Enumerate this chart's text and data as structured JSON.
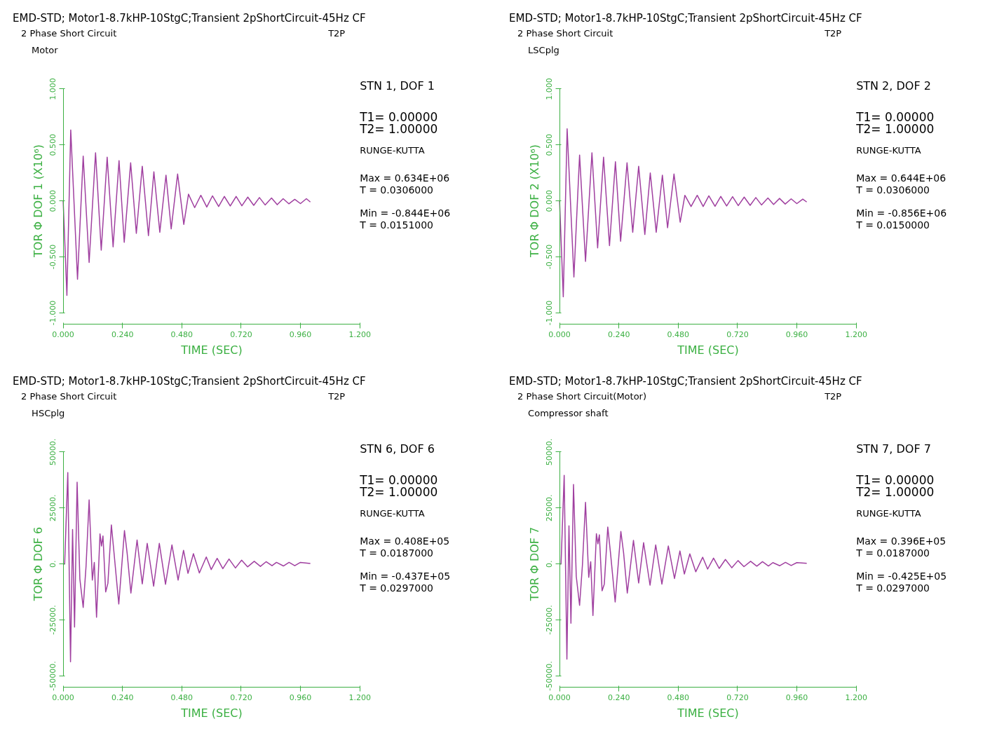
{
  "chart_data": [
    {
      "type": "line",
      "title": "EMD-STD; Motor1-8.7kHP-10StgC;Transient 2pShortCircuit-45Hz CF",
      "subtitle": "2 Phase Short Circuit",
      "xlabel": "TIME (SEC)",
      "ylabel": "TOR Φ DOF 1 (X10⁶)",
      "annotations": [
        "T2P",
        "Motor",
        "STN 1, DOF 1",
        "T1= 0.00000",
        "T2= 1.00000",
        "RUNGE-KUTTA",
        "Max = 0.634E+06",
        "T = 0.0306000",
        "Min = -0.844E+06",
        "T = 0.0151000"
      ],
      "xlim": [
        0,
        1.2
      ],
      "ylim": [
        -1,
        1
      ],
      "xticks": [
        {
          "value": 0,
          "label": "0.000"
        },
        {
          "value": 0.24,
          "label": "0.240"
        },
        {
          "value": 0.48,
          "label": "0.480"
        },
        {
          "value": 0.72,
          "label": "0.720"
        },
        {
          "value": 0.96,
          "label": "0.960"
        },
        {
          "value": 1.2,
          "label": "1.200"
        }
      ],
      "yticks": [
        {
          "value": -1,
          "label": "-1.000"
        },
        {
          "value": -0.5,
          "label": "-0.500"
        },
        {
          "value": 0,
          "label": "0.000"
        },
        {
          "value": 0.5,
          "label": "0.500"
        },
        {
          "value": 1,
          "label": "1.000"
        }
      ],
      "grid": false,
      "series": [
        {
          "color": "#a040a0",
          "x": [
            0,
            0.0151,
            0.0306,
            0.058,
            0.081,
            0.105,
            0.131,
            0.154,
            0.178,
            0.202,
            0.226,
            0.247,
            0.273,
            0.296,
            0.32,
            0.345,
            0.367,
            0.391,
            0.416,
            0.437,
            0.463,
            0.488,
            0.507,
            0.532,
            0.557,
            0.581,
            0.604,
            0.629,
            0.652,
            0.676,
            0.7,
            0.723,
            0.747,
            0.771,
            0.794,
            0.817,
            0.843,
            0.866,
            0.89,
            0.913,
            0.937,
            0.96,
            0.984,
            1.0
          ],
          "values": [
            0,
            -0.844,
            0.634,
            -0.7,
            0.4,
            -0.55,
            0.43,
            -0.44,
            0.39,
            -0.41,
            0.36,
            -0.37,
            0.34,
            -0.29,
            0.31,
            -0.31,
            0.26,
            -0.28,
            0.23,
            -0.25,
            0.24,
            -0.21,
            0.06,
            -0.06,
            0.05,
            -0.055,
            0.045,
            -0.05,
            0.04,
            -0.045,
            0.04,
            -0.044,
            0.034,
            -0.04,
            0.03,
            -0.036,
            0.026,
            -0.034,
            0.02,
            -0.026,
            0.014,
            -0.024,
            0.02,
            -0.01
          ]
        }
      ]
    },
    {
      "type": "line",
      "title": "EMD-STD; Motor1-8.7kHP-10StgC;Transient 2pShortCircuit-45Hz CF",
      "subtitle": "2 Phase Short Circuit",
      "xlabel": "TIME (SEC)",
      "ylabel": "TOR Φ DOF 2 (X10⁶)",
      "annotations": [
        "T2P",
        "LSCplg",
        "STN 2, DOF 2",
        "T1= 0.00000",
        "T2= 1.00000",
        "RUNGE-KUTTA",
        "Max = 0.644E+06",
        "T = 0.0306000",
        "Min = -0.856E+06",
        "T = 0.0150000"
      ],
      "xlim": [
        0,
        1.2
      ],
      "ylim": [
        -1,
        1
      ],
      "xticks": [
        {
          "value": 0,
          "label": "0.000"
        },
        {
          "value": 0.24,
          "label": "0.240"
        },
        {
          "value": 0.48,
          "label": "0.480"
        },
        {
          "value": 0.72,
          "label": "0.720"
        },
        {
          "value": 0.96,
          "label": "0.960"
        },
        {
          "value": 1.2,
          "label": "1.200"
        }
      ],
      "yticks": [
        {
          "value": -1,
          "label": "-1.000"
        },
        {
          "value": -0.5,
          "label": "-0.500"
        },
        {
          "value": 0,
          "label": "0.000"
        },
        {
          "value": 0.5,
          "label": "0.500"
        },
        {
          "value": 1,
          "label": "1.000"
        }
      ],
      "grid": false,
      "series": [
        {
          "color": "#a040a0",
          "x": [
            0,
            0.015,
            0.0306,
            0.058,
            0.081,
            0.105,
            0.131,
            0.154,
            0.178,
            0.202,
            0.226,
            0.247,
            0.273,
            0.296,
            0.32,
            0.345,
            0.367,
            0.391,
            0.416,
            0.437,
            0.463,
            0.488,
            0.507,
            0.532,
            0.557,
            0.581,
            0.604,
            0.629,
            0.652,
            0.676,
            0.7,
            0.723,
            0.747,
            0.771,
            0.794,
            0.817,
            0.843,
            0.866,
            0.89,
            0.913,
            0.937,
            0.96,
            0.984,
            1.0
          ],
          "values": [
            0,
            -0.856,
            0.644,
            -0.68,
            0.41,
            -0.54,
            0.43,
            -0.42,
            0.39,
            -0.4,
            0.35,
            -0.36,
            0.34,
            -0.28,
            0.31,
            -0.3,
            0.25,
            -0.28,
            0.23,
            -0.24,
            0.24,
            -0.19,
            0.05,
            -0.05,
            0.05,
            -0.05,
            0.045,
            -0.048,
            0.04,
            -0.045,
            0.038,
            -0.042,
            0.034,
            -0.04,
            0.03,
            -0.036,
            0.026,
            -0.032,
            0.022,
            -0.028,
            0.018,
            -0.024,
            0.016,
            -0.01
          ]
        }
      ]
    },
    {
      "type": "line",
      "title": "EMD-STD; Motor1-8.7kHP-10StgC;Transient 2pShortCircuit-45Hz CF",
      "subtitle": "2 Phase Short Circuit",
      "xlabel": "TIME (SEC)",
      "ylabel": "TOR Φ DOF 6",
      "annotations": [
        "T2P",
        "HSCplg",
        "STN 6, DOF 6",
        "T1= 0.00000",
        "T2= 1.00000",
        "RUNGE-KUTTA",
        "Max = 0.408E+05",
        "T = 0.0187000",
        "Min = -0.437E+05",
        "T = 0.0297000"
      ],
      "xlim": [
        0,
        1.2
      ],
      "ylim": [
        -50000,
        50000
      ],
      "xticks": [
        {
          "value": 0,
          "label": "0.000"
        },
        {
          "value": 0.24,
          "label": "0.240"
        },
        {
          "value": 0.48,
          "label": "0.480"
        },
        {
          "value": 0.72,
          "label": "0.720"
        },
        {
          "value": 0.96,
          "label": "0.960"
        },
        {
          "value": 1.2,
          "label": "1.200"
        }
      ],
      "yticks": [
        {
          "value": -50000,
          "label": "-50000."
        },
        {
          "value": -25000,
          "label": "-25000."
        },
        {
          "value": 0,
          "label": "0."
        },
        {
          "value": 25000,
          "label": "25000."
        },
        {
          "value": 50000,
          "label": "50000."
        }
      ],
      "grid": false,
      "series": [
        {
          "color": "#a040a0",
          "x": [
            0,
            0.006,
            0.0187,
            0.0297,
            0.038,
            0.046,
            0.0564,
            0.0675,
            0.081,
            0.0925,
            0.105,
            0.118,
            0.126,
            0.135,
            0.149,
            0.155,
            0.161,
            0.172,
            0.181,
            0.195,
            0.206,
            0.225,
            0.248,
            0.259,
            0.274,
            0.299,
            0.32,
            0.34,
            0.366,
            0.389,
            0.414,
            0.44,
            0.465,
            0.487,
            0.505,
            0.527,
            0.551,
            0.579,
            0.599,
            0.623,
            0.646,
            0.671,
            0.697,
            0.722,
            0.746,
            0.773,
            0.798,
            0.821,
            0.845,
            0.863,
            0.891,
            0.914,
            0.937,
            0.96,
            1.0
          ],
          "values": [
            0,
            0,
            40800,
            -43700,
            15400,
            -28200,
            36500,
            -6700,
            -19400,
            -1100,
            28600,
            -7200,
            700,
            -23800,
            13400,
            8000,
            12500,
            -12500,
            -8600,
            17400,
            4600,
            -17900,
            14900,
            4600,
            -13000,
            10700,
            -8900,
            9200,
            -9900,
            9200,
            -9100,
            8500,
            -7200,
            6100,
            -4200,
            4600,
            -4000,
            3100,
            -2500,
            2500,
            -2100,
            2200,
            -1800,
            1700,
            -1300,
            1200,
            -1100,
            1000,
            -800,
            700,
            -900,
            700,
            -800,
            700,
            200
          ]
        }
      ]
    },
    {
      "type": "line",
      "title": "EMD-STD; Motor1-8.7kHP-10StgC;Transient 2pShortCircuit-45Hz CF",
      "subtitle": "2 Phase Short Circuit(Motor)",
      "xlabel": "TIME (SEC)",
      "ylabel": "TOR Φ DOF 7",
      "annotations": [
        "T2P",
        "Compressor shaft",
        "STN 7, DOF 7",
        "T1= 0.00000",
        "T2= 1.00000",
        "RUNGE-KUTTA",
        "Max = 0.396E+05",
        "T = 0.0187000",
        "Min = -0.425E+05",
        "T = 0.0297000"
      ],
      "xlim": [
        0,
        1.2
      ],
      "ylim": [
        -50000,
        50000
      ],
      "xticks": [
        {
          "value": 0,
          "label": "0.000"
        },
        {
          "value": 0.24,
          "label": "0.240"
        },
        {
          "value": 0.48,
          "label": "0.480"
        },
        {
          "value": 0.72,
          "label": "0.720"
        },
        {
          "value": 0.96,
          "label": "0.960"
        },
        {
          "value": 1.2,
          "label": "1.200"
        }
      ],
      "yticks": [
        {
          "value": -50000,
          "label": "-50000."
        },
        {
          "value": -25000,
          "label": "-25000."
        },
        {
          "value": 0,
          "label": "0."
        },
        {
          "value": 25000,
          "label": "25000."
        },
        {
          "value": 50000,
          "label": "50000."
        }
      ],
      "grid": false,
      "series": [
        {
          "color": "#a040a0",
          "x": [
            0,
            0.006,
            0.0187,
            0.0297,
            0.038,
            0.046,
            0.0564,
            0.0675,
            0.081,
            0.0925,
            0.105,
            0.118,
            0.126,
            0.135,
            0.149,
            0.155,
            0.161,
            0.172,
            0.181,
            0.195,
            0.206,
            0.225,
            0.248,
            0.259,
            0.274,
            0.299,
            0.32,
            0.34,
            0.366,
            0.389,
            0.414,
            0.44,
            0.465,
            0.487,
            0.505,
            0.527,
            0.551,
            0.579,
            0.599,
            0.623,
            0.646,
            0.671,
            0.697,
            0.722,
            0.746,
            0.773,
            0.798,
            0.821,
            0.845,
            0.863,
            0.891,
            0.914,
            0.937,
            0.96,
            1.0
          ],
          "values": [
            0,
            0,
            39600,
            -42500,
            17000,
            -26500,
            35500,
            -5500,
            -18500,
            -500,
            27500,
            -6000,
            1000,
            -23000,
            13500,
            9000,
            13000,
            -12000,
            -9000,
            16500,
            5000,
            -17000,
            14500,
            5000,
            -13000,
            10500,
            -8500,
            9500,
            -9500,
            8500,
            -9000,
            8000,
            -6500,
            5800,
            -4500,
            4500,
            -3500,
            3000,
            -2300,
            2600,
            -2000,
            2000,
            -1700,
            1500,
            -1200,
            1200,
            -1000,
            1000,
            -900,
            600,
            -800,
            700,
            -700,
            600,
            300
          ]
        }
      ]
    }
  ]
}
